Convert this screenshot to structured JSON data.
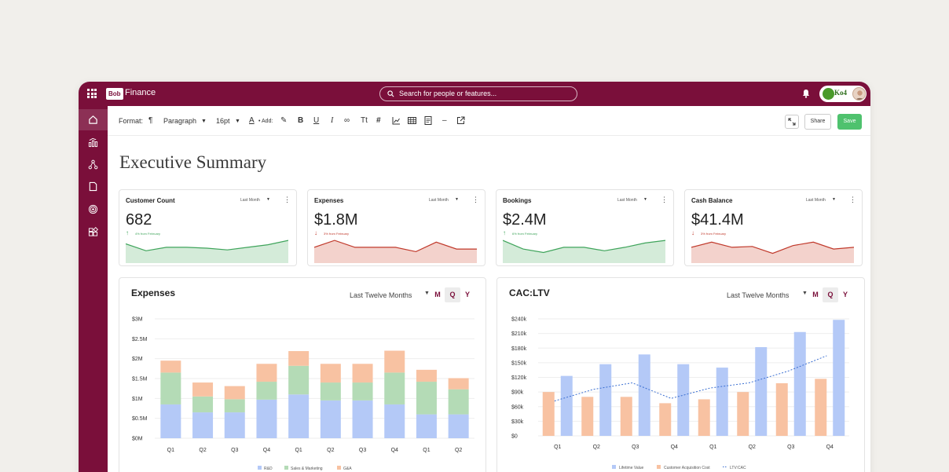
{
  "app": {
    "logo_text": "Bob",
    "title": "Finance",
    "search_placeholder": "Search for people or features...",
    "partner_logo_text": "Ko4"
  },
  "sidebar": {
    "items": [
      {
        "name": "home",
        "icon": "home-icon"
      },
      {
        "name": "analytics",
        "icon": "bar-chart-icon"
      },
      {
        "name": "workflow",
        "icon": "nodes-icon"
      },
      {
        "name": "documents",
        "icon": "document-icon"
      },
      {
        "name": "goals",
        "icon": "target-icon"
      },
      {
        "name": "widgets",
        "icon": "widgets-icon"
      }
    ]
  },
  "toolbar": {
    "format_label": "Format:",
    "paragraph_label": "Paragraph",
    "font_size": "16pt",
    "add_label": "• Add:",
    "share_label": "Share",
    "save_label": "Save"
  },
  "page": {
    "title": "Executive Summary"
  },
  "kpis": [
    {
      "title": "Customer Count",
      "period": "Last Month",
      "value": "682",
      "change": "4% from February",
      "trend": "up",
      "color": "#3fa45b",
      "fill": "#d4ebd9"
    },
    {
      "title": "Expenses",
      "period": "Last Month",
      "value": "$1.8M",
      "change": "3% from February",
      "trend": "down",
      "color": "#c0392b",
      "fill": "#f3d2cc"
    },
    {
      "title": "Bookings",
      "period": "Last Month",
      "value": "$2.4M",
      "change": "6% from February",
      "trend": "up",
      "color": "#3fa45b",
      "fill": "#d4ebd9"
    },
    {
      "title": "Cash Balance",
      "period": "Last Month",
      "value": "$41.4M",
      "change": "3% from February",
      "trend": "down",
      "color": "#c0392b",
      "fill": "#f3d2cc"
    }
  ],
  "charts": {
    "expenses": {
      "title": "Expenses",
      "period": "Last Twelve Months",
      "m": "M",
      "q": "Q",
      "y": "Y"
    },
    "cacltv": {
      "title": "CAC:LTV",
      "period": "Last Twelve Months",
      "m": "M",
      "q": "Q",
      "y": "Y"
    }
  },
  "colors": {
    "brand": "#7a0f3a",
    "save": "#4fc26e",
    "rd": "#b4c9f7",
    "sm": "#b4dbb6",
    "ga": "#f8c2a2",
    "ltv": "#b4c9f7",
    "cac": "#f8c2a2",
    "ratio": "#3b6fd1"
  },
  "chart_data": [
    {
      "type": "bar",
      "title": "Expenses",
      "stacked": true,
      "categories": [
        "Q1",
        "Q2",
        "Q3",
        "Q4",
        "Q1",
        "Q2",
        "Q3",
        "Q4",
        "Q1",
        "Q2"
      ],
      "ytick_labels": [
        "$0M",
        "$0.5M",
        "$1M",
        "$1.5M",
        "$2M",
        "$2.5M",
        "$3M"
      ],
      "ylim": [
        0,
        3
      ],
      "legend": "bottom",
      "series": [
        {
          "name": "R&D",
          "values": [
            0.85,
            0.65,
            0.65,
            0.97,
            1.1,
            0.95,
            0.95,
            0.85,
            0.6,
            0.6
          ]
        },
        {
          "name": "Sales & Marketing",
          "values": [
            0.8,
            0.4,
            0.33,
            0.45,
            0.72,
            0.45,
            0.45,
            0.8,
            0.82,
            0.63
          ]
        },
        {
          "name": "G&A",
          "values": [
            0.3,
            0.35,
            0.33,
            0.45,
            0.37,
            0.47,
            0.47,
            0.55,
            0.3,
            0.28
          ]
        }
      ]
    },
    {
      "type": "bar",
      "title": "CAC:LTV",
      "categories": [
        "Q1",
        "Q2",
        "Q3",
        "Q4",
        "Q1",
        "Q2",
        "Q3",
        "Q4"
      ],
      "ytick_labels": [
        "$0",
        "$30k",
        "$60k",
        "$90k",
        "$120k",
        "$150k",
        "$180k",
        "$210k",
        "$240k"
      ],
      "ylim": [
        0,
        240
      ],
      "legend": "bottom",
      "series": [
        {
          "name": "Customer Acquisition Cost",
          "kind": "bar",
          "values": [
            90,
            80,
            80,
            67,
            75,
            90,
            108,
            117
          ]
        },
        {
          "name": "Lifetime Value",
          "kind": "bar",
          "values": [
            123,
            147,
            167,
            147,
            140,
            182,
            213,
            238
          ]
        },
        {
          "name": "LTV:CAC",
          "kind": "line",
          "values": [
            1.35,
            1.8,
            2.05,
            1.45,
            1.85,
            2.05,
            2.5,
            3.1
          ]
        }
      ]
    }
  ]
}
